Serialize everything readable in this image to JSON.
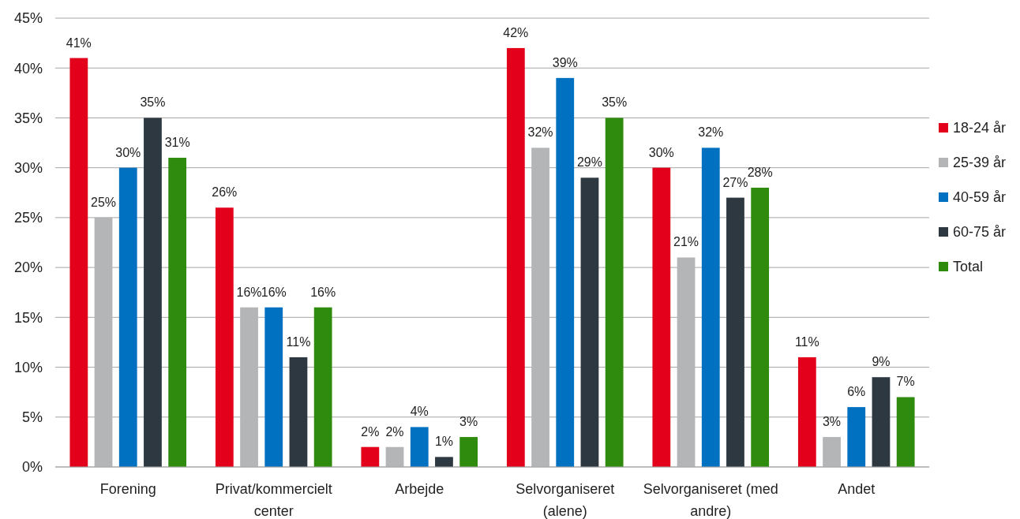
{
  "chart_data": {
    "type": "bar",
    "categories": [
      "Forening",
      "Privat/kommercielt center",
      "Arbejde",
      "Selvorganiseret (alene)",
      "Selvorganiseret (med andre)",
      "Andet"
    ],
    "series": [
      {
        "name": "18-24 år",
        "color": "#e2001a",
        "values": [
          41,
          26,
          2,
          42,
          30,
          11
        ],
        "value_labels": [
          "41%",
          "26%",
          "2%",
          "42%",
          "30%",
          "11%"
        ]
      },
      {
        "name": "25-39 år",
        "color": "#b4b5b7",
        "values": [
          25,
          16,
          2,
          32,
          21,
          3
        ],
        "value_labels": [
          "25%",
          "16%",
          "2%",
          "32%",
          "21%",
          "3%"
        ]
      },
      {
        "name": "40-59 år",
        "color": "#0070c0",
        "values": [
          30,
          16,
          4,
          39,
          32,
          6
        ],
        "value_labels": [
          "30%",
          "16%",
          "4%",
          "39%",
          "32%",
          "6%"
        ]
      },
      {
        "name": "60-75 år",
        "color": "#2d3840",
        "values": [
          35,
          11,
          1,
          29,
          27,
          9
        ],
        "value_labels": [
          "35%",
          "11%",
          "1%",
          "29%",
          "27%",
          "9%"
        ]
      },
      {
        "name": "Total",
        "color": "#2e8b0e",
        "values": [
          31,
          16,
          3,
          35,
          28,
          7
        ],
        "value_labels": [
          "31%",
          "16%",
          "3%",
          "35%",
          "28%",
          "7%"
        ]
      }
    ],
    "ylim": [
      0,
      45
    ],
    "yticks": [
      {
        "value": 0,
        "label": "0%"
      },
      {
        "value": 5,
        "label": "5%"
      },
      {
        "value": 10,
        "label": "10%"
      },
      {
        "value": 15,
        "label": "15%"
      },
      {
        "value": 20,
        "label": "20%"
      },
      {
        "value": 25,
        "label": "25%"
      },
      {
        "value": 30,
        "label": "30%"
      },
      {
        "value": 35,
        "label": "35%"
      },
      {
        "value": 40,
        "label": "40%"
      },
      {
        "value": 45,
        "label": "45%"
      }
    ],
    "grid": "y",
    "legend": "right"
  }
}
